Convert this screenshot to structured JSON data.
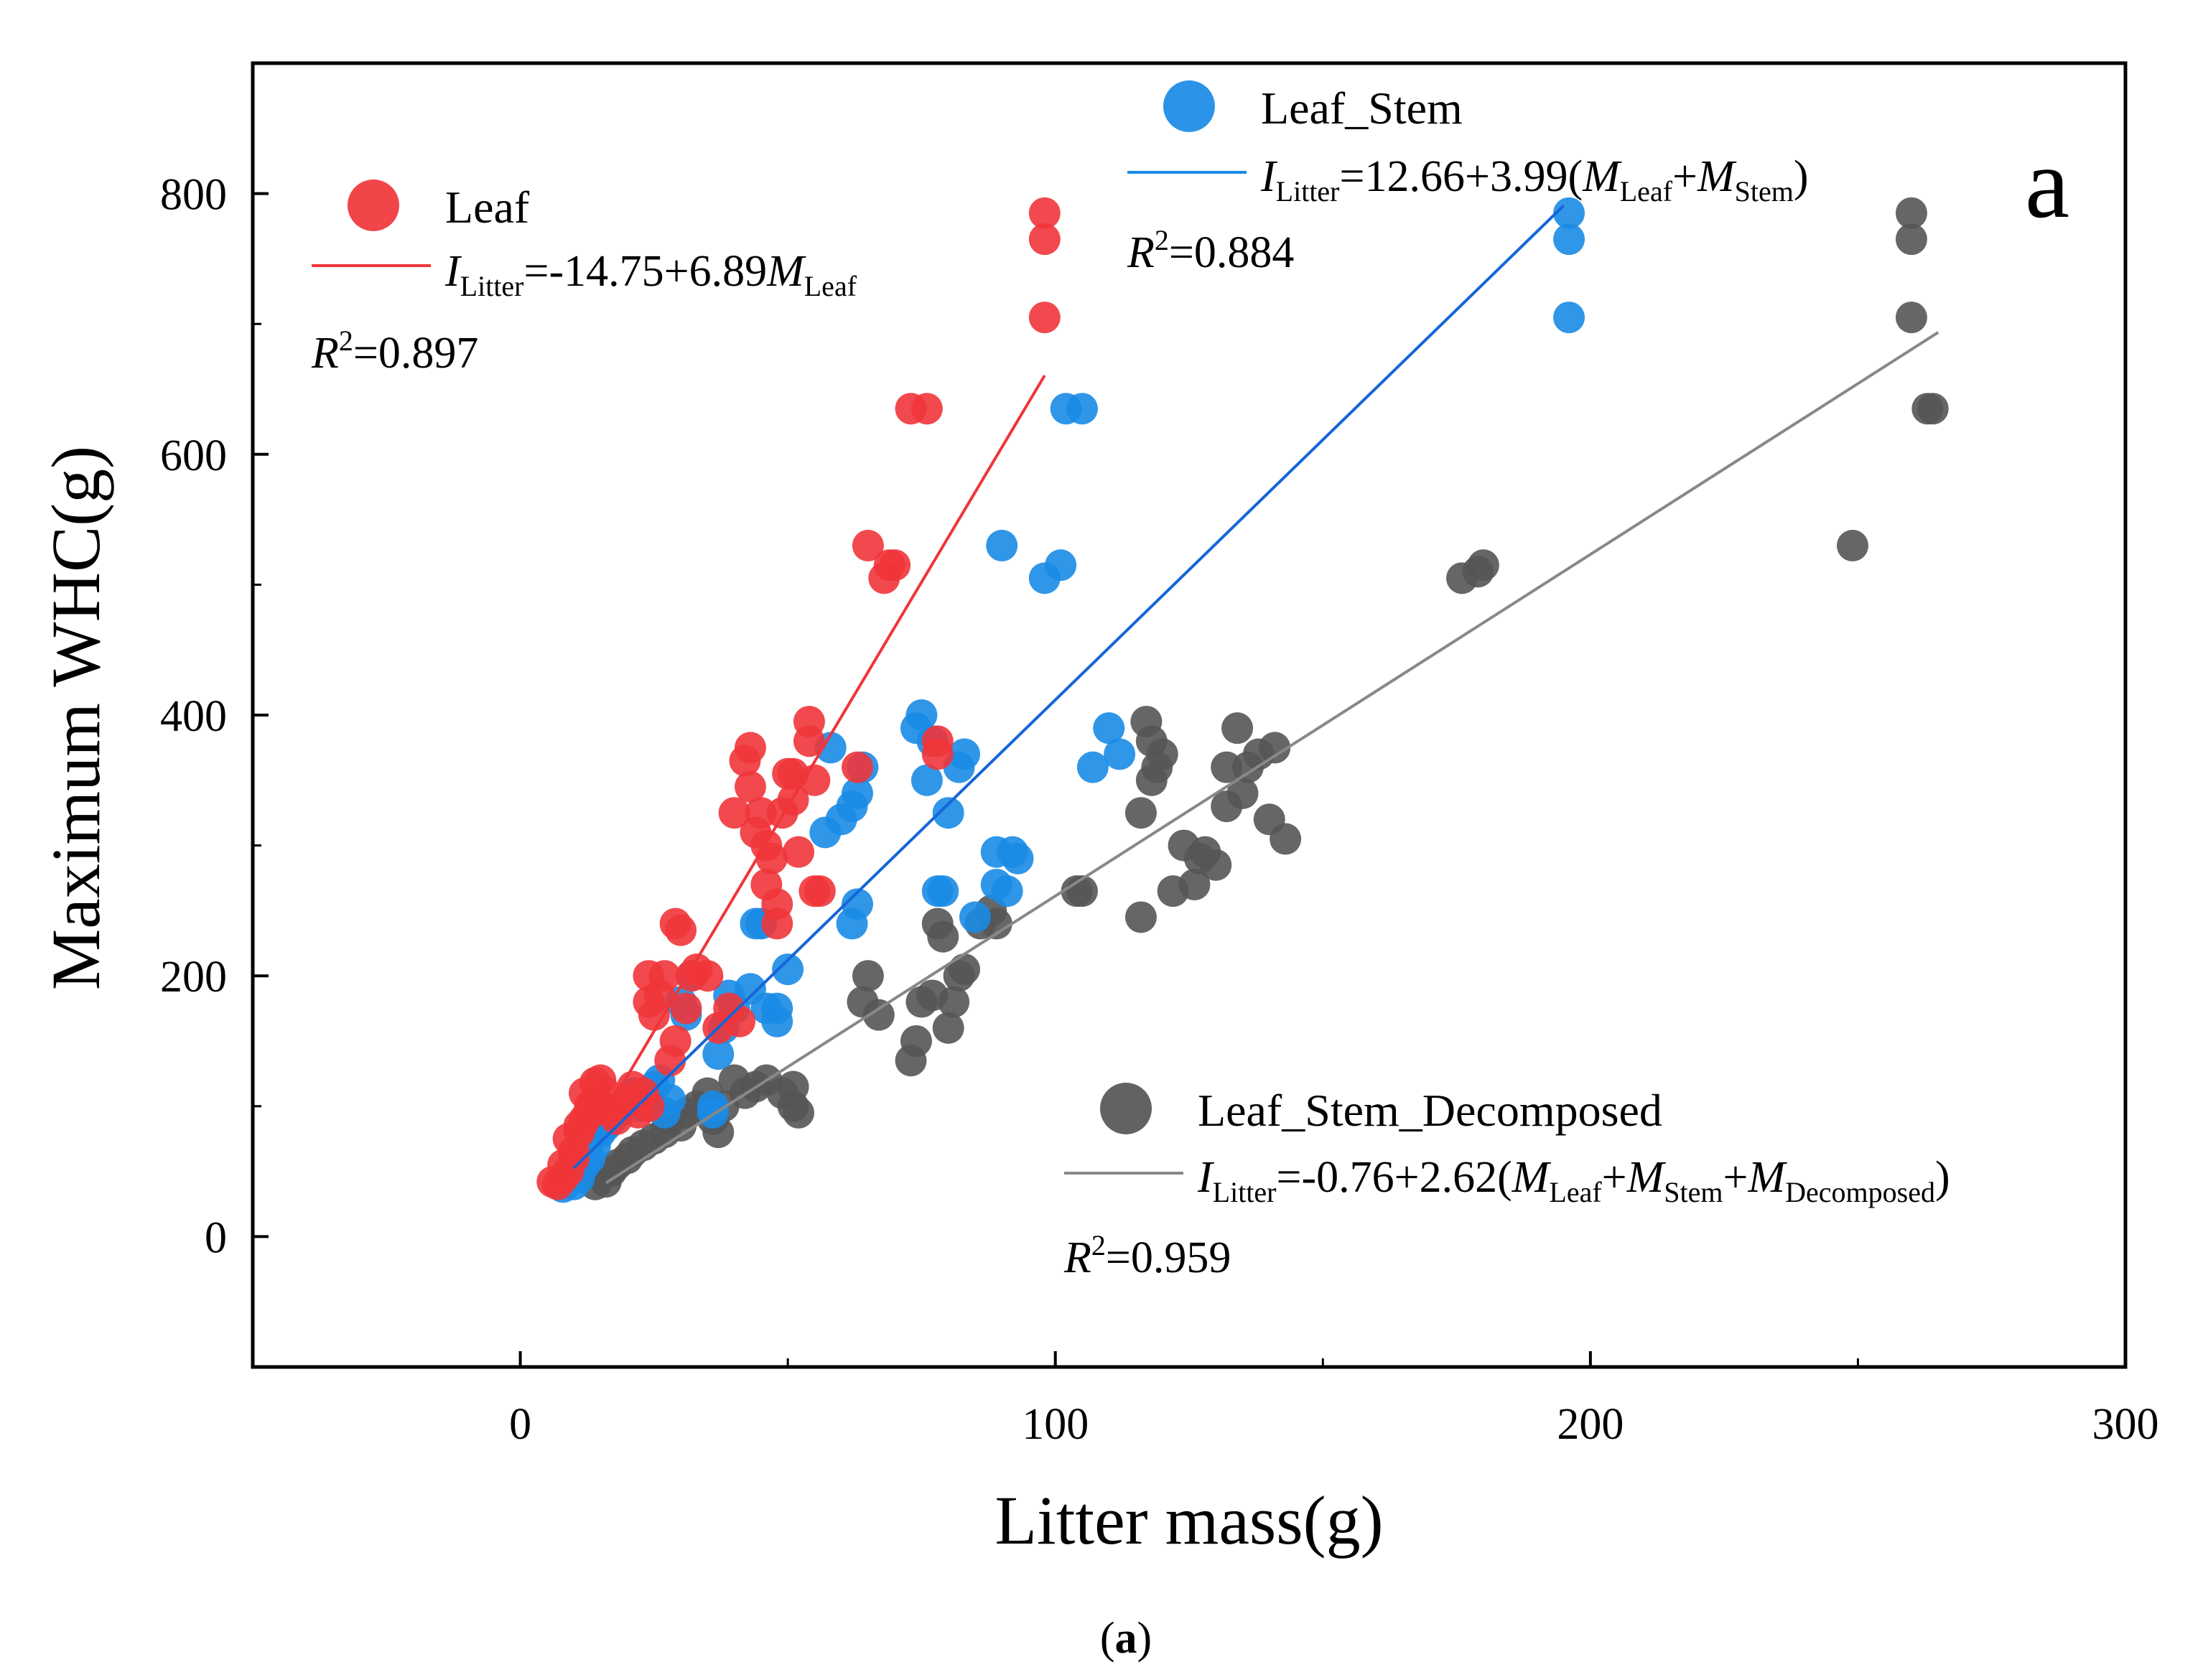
{
  "chart_data": {
    "type": "scatter",
    "xlabel": "Litter mass(g)",
    "ylabel": "Maximum WHC(g)",
    "xlim": [
      -50,
      300
    ],
    "ylim": [
      -100,
      900
    ],
    "x_ticks": [
      0,
      100,
      200,
      300
    ],
    "x_tick_labels": [
      "0",
      "100",
      "200",
      "300"
    ],
    "y_ticks": [
      0,
      200,
      400,
      600,
      800
    ],
    "y_tick_labels": [
      "0",
      "200",
      "400",
      "600",
      "800"
    ],
    "panel_letter": "a",
    "caption": {
      "open": "(",
      "letter": "a",
      "close": ")"
    },
    "series": [
      {
        "name": "Leaf",
        "color": "#f0353a",
        "fit": {
          "intercept": -14.75,
          "slope": 6.89,
          "x_range": [
            8,
            98
          ]
        },
        "equation": {
          "lhs": "I",
          "lhs_sub": "Litter",
          "rhs": "=-14.75+6.89",
          "var": "M",
          "var_sub": "Leaf"
        },
        "r2": {
          "label": "R",
          "sup": "2",
          "value": "=0.897"
        },
        "points": [
          [
            6,
            42
          ],
          [
            7,
            40
          ],
          [
            8,
            45
          ],
          [
            8,
            55
          ],
          [
            9,
            50
          ],
          [
            9,
            75
          ],
          [
            10,
            60
          ],
          [
            10,
            65
          ],
          [
            11,
            80
          ],
          [
            11,
            85
          ],
          [
            12,
            90
          ],
          [
            12,
            110
          ],
          [
            13,
            95
          ],
          [
            13,
            100
          ],
          [
            14,
            105
          ],
          [
            14,
            118
          ],
          [
            15,
            120
          ],
          [
            15,
            100
          ],
          [
            16,
            110
          ],
          [
            17,
            95
          ],
          [
            18,
            90
          ],
          [
            19,
            100
          ],
          [
            20,
            105
          ],
          [
            21,
            115
          ],
          [
            22,
            95
          ],
          [
            23,
            110
          ],
          [
            24,
            100
          ],
          [
            24,
            180
          ],
          [
            24,
            200
          ],
          [
            25,
            170
          ],
          [
            26,
            185
          ],
          [
            27,
            200
          ],
          [
            28,
            135
          ],
          [
            29,
            150
          ],
          [
            29,
            240
          ],
          [
            30,
            235
          ],
          [
            31,
            175
          ],
          [
            32,
            200
          ],
          [
            33,
            205
          ],
          [
            35,
            200
          ],
          [
            37,
            160
          ],
          [
            39,
            175
          ],
          [
            40,
            325
          ],
          [
            41,
            165
          ],
          [
            42,
            365
          ],
          [
            43,
            345
          ],
          [
            43,
            375
          ],
          [
            44,
            310
          ],
          [
            45,
            325
          ],
          [
            46,
            270
          ],
          [
            46,
            300
          ],
          [
            47,
            290
          ],
          [
            48,
            255
          ],
          [
            48,
            240
          ],
          [
            49,
            325
          ],
          [
            50,
            355
          ],
          [
            51,
            335
          ],
          [
            51,
            355
          ],
          [
            52,
            295
          ],
          [
            54,
            380
          ],
          [
            54,
            395
          ],
          [
            55,
            350
          ],
          [
            55,
            265
          ],
          [
            56,
            265
          ],
          [
            63,
            360
          ],
          [
            65,
            530
          ],
          [
            68,
            505
          ],
          [
            69,
            515
          ],
          [
            70,
            515
          ],
          [
            73,
            635
          ],
          [
            76,
            635
          ],
          [
            78,
            380
          ],
          [
            78,
            370
          ],
          [
            98,
            785
          ],
          [
            98,
            765
          ],
          [
            98,
            705
          ]
        ]
      },
      {
        "name": "Leaf_Stem",
        "color": "#1a8be6",
        "fit": {
          "intercept": 12.66,
          "slope": 3.99,
          "x_range": [
            10,
            195
          ]
        },
        "equation": {
          "lhs": "I",
          "lhs_sub": "Litter",
          "rhs": "=12.66+3.99(",
          "var1": "M",
          "var1_sub": "Leaf",
          "plus": "+",
          "var2": "M",
          "var2_sub": "Stem",
          "close": ")"
        },
        "r2": {
          "label": "R",
          "sup": "2",
          "value": "=0.884"
        },
        "points": [
          [
            8,
            38
          ],
          [
            10,
            40
          ],
          [
            11,
            45
          ],
          [
            12,
            55
          ],
          [
            13,
            60
          ],
          [
            14,
            70
          ],
          [
            15,
            80
          ],
          [
            16,
            85
          ],
          [
            17,
            90
          ],
          [
            18,
            95
          ],
          [
            19,
            100
          ],
          [
            20,
            105
          ],
          [
            21,
            110
          ],
          [
            22,
            100
          ],
          [
            23,
            105
          ],
          [
            24,
            110
          ],
          [
            25,
            115
          ],
          [
            26,
            120
          ],
          [
            27,
            95
          ],
          [
            28,
            105
          ],
          [
            30,
            180
          ],
          [
            31,
            170
          ],
          [
            32,
            200
          ],
          [
            36,
            100
          ],
          [
            36,
            95
          ],
          [
            37,
            140
          ],
          [
            38,
            160
          ],
          [
            39,
            185
          ],
          [
            40,
            175
          ],
          [
            43,
            190
          ],
          [
            44,
            240
          ],
          [
            45,
            240
          ],
          [
            46,
            175
          ],
          [
            48,
            165
          ],
          [
            48,
            175
          ],
          [
            50,
            205
          ],
          [
            57,
            310
          ],
          [
            58,
            375
          ],
          [
            60,
            320
          ],
          [
            62,
            330
          ],
          [
            62,
            240
          ],
          [
            63,
            255
          ],
          [
            63,
            340
          ],
          [
            64,
            360
          ],
          [
            74,
            390
          ],
          [
            75,
            400
          ],
          [
            76,
            350
          ],
          [
            77,
            380
          ],
          [
            78,
            265
          ],
          [
            79,
            265
          ],
          [
            80,
            325
          ],
          [
            82,
            360
          ],
          [
            83,
            370
          ],
          [
            85,
            245
          ],
          [
            89,
            270
          ],
          [
            89,
            295
          ],
          [
            90,
            530
          ],
          [
            91,
            265
          ],
          [
            92,
            295
          ],
          [
            93,
            290
          ],
          [
            98,
            505
          ],
          [
            101,
            515
          ],
          [
            102,
            635
          ],
          [
            105,
            635
          ],
          [
            107,
            360
          ],
          [
            110,
            390
          ],
          [
            112,
            370
          ],
          [
            196,
            785
          ],
          [
            196,
            765
          ],
          [
            196,
            705
          ]
        ]
      },
      {
        "name": "Leaf_Stem_Decomposed",
        "color": "#555555",
        "fit": {
          "intercept": -0.76,
          "slope": 2.62,
          "x_range": [
            16,
            265
          ]
        },
        "equation": {
          "lhs": "I",
          "lhs_sub": "Litter",
          "rhs": "=-0.76+2.62(",
          "var1": "M",
          "var1_sub": "Leaf",
          "plus1": "+",
          "var2": "M",
          "var2_sub": "Stem",
          "plus2": "+",
          "var3": "M",
          "var3_sub": "Decomposed",
          "close": ")"
        },
        "r2": {
          "label": "R",
          "sup": "2",
          "value": "=0.959"
        },
        "points": [
          [
            14,
            40
          ],
          [
            16,
            42
          ],
          [
            17,
            50
          ],
          [
            18,
            55
          ],
          [
            20,
            60
          ],
          [
            21,
            65
          ],
          [
            23,
            70
          ],
          [
            25,
            75
          ],
          [
            27,
            80
          ],
          [
            28,
            90
          ],
          [
            30,
            85
          ],
          [
            31,
            95
          ],
          [
            33,
            100
          ],
          [
            35,
            110
          ],
          [
            36,
            90
          ],
          [
            37,
            80
          ],
          [
            38,
            100
          ],
          [
            40,
            120
          ],
          [
            42,
            110
          ],
          [
            44,
            115
          ],
          [
            46,
            120
          ],
          [
            49,
            110
          ],
          [
            51,
            100
          ],
          [
            51,
            115
          ],
          [
            52,
            95
          ],
          [
            64,
            180
          ],
          [
            65,
            200
          ],
          [
            67,
            170
          ],
          [
            73,
            135
          ],
          [
            74,
            150
          ],
          [
            75,
            180
          ],
          [
            77,
            185
          ],
          [
            78,
            240
          ],
          [
            79,
            230
          ],
          [
            80,
            160
          ],
          [
            81,
            180
          ],
          [
            82,
            200
          ],
          [
            83,
            205
          ],
          [
            86,
            240
          ],
          [
            88,
            250
          ],
          [
            89,
            240
          ],
          [
            104,
            265
          ],
          [
            105,
            265
          ],
          [
            116,
            245
          ],
          [
            116,
            325
          ],
          [
            117,
            395
          ],
          [
            118,
            380
          ],
          [
            118,
            350
          ],
          [
            119,
            360
          ],
          [
            120,
            370
          ],
          [
            122,
            265
          ],
          [
            124,
            300
          ],
          [
            126,
            270
          ],
          [
            127,
            290
          ],
          [
            128,
            295
          ],
          [
            130,
            285
          ],
          [
            132,
            330
          ],
          [
            132,
            360
          ],
          [
            134,
            390
          ],
          [
            135,
            340
          ],
          [
            136,
            360
          ],
          [
            138,
            370
          ],
          [
            140,
            320
          ],
          [
            141,
            375
          ],
          [
            143,
            305
          ],
          [
            176,
            505
          ],
          [
            179,
            510
          ],
          [
            180,
            515
          ],
          [
            249,
            530
          ],
          [
            260,
            785
          ],
          [
            260,
            765
          ],
          [
            260,
            705
          ],
          [
            263,
            635
          ],
          [
            264,
            635
          ]
        ]
      }
    ]
  }
}
